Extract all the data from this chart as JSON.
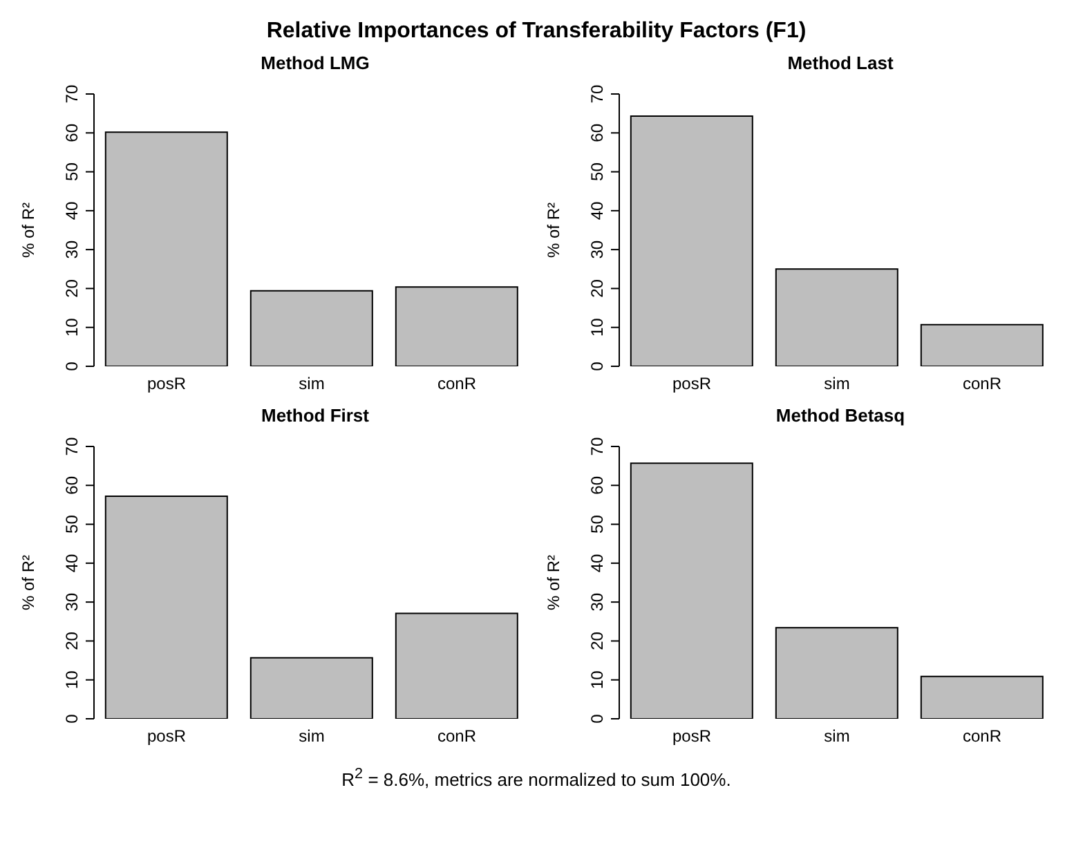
{
  "chart_data": [
    {
      "type": "other",
      "title": "Relative Importances of Transferability Factors (F1)"
    },
    {
      "type": "bar",
      "title": "Method LMG",
      "ylabel": "% of R²",
      "categories": [
        "posR",
        "sim",
        "conR"
      ],
      "values": [
        60.2,
        19.4,
        20.4
      ],
      "color": "#bebebe",
      "ylim": [
        0,
        70
      ],
      "yticks": [
        0,
        10,
        20,
        30,
        40,
        50,
        60,
        70
      ]
    },
    {
      "type": "bar",
      "title": "Method Last",
      "ylabel": "% of R²",
      "categories": [
        "posR",
        "sim",
        "conR"
      ],
      "values": [
        64.3,
        25.0,
        10.7
      ],
      "color": "#bebebe",
      "ylim": [
        0,
        70
      ],
      "yticks": [
        0,
        10,
        20,
        30,
        40,
        50,
        60,
        70
      ]
    },
    {
      "type": "bar",
      "title": "Method First",
      "ylabel": "% of R²",
      "categories": [
        "posR",
        "sim",
        "conR"
      ],
      "values": [
        57.2,
        15.7,
        27.1
      ],
      "color": "#bebebe",
      "ylim": [
        0,
        70
      ],
      "yticks": [
        0,
        10,
        20,
        30,
        40,
        50,
        60,
        70
      ]
    },
    {
      "type": "bar",
      "title": "Method Betasq",
      "ylabel": "% of R²",
      "categories": [
        "posR",
        "sim",
        "conR"
      ],
      "values": [
        65.7,
        23.4,
        10.9
      ],
      "color": "#bebebe",
      "ylim": [
        0,
        70
      ],
      "yticks": [
        0,
        10,
        20,
        30,
        40,
        50,
        60,
        70
      ]
    },
    {
      "type": "other",
      "annotations": [
        "R$^{2}$ = 8.6%, metrics are normalized to sum 100%."
      ]
    }
  ]
}
